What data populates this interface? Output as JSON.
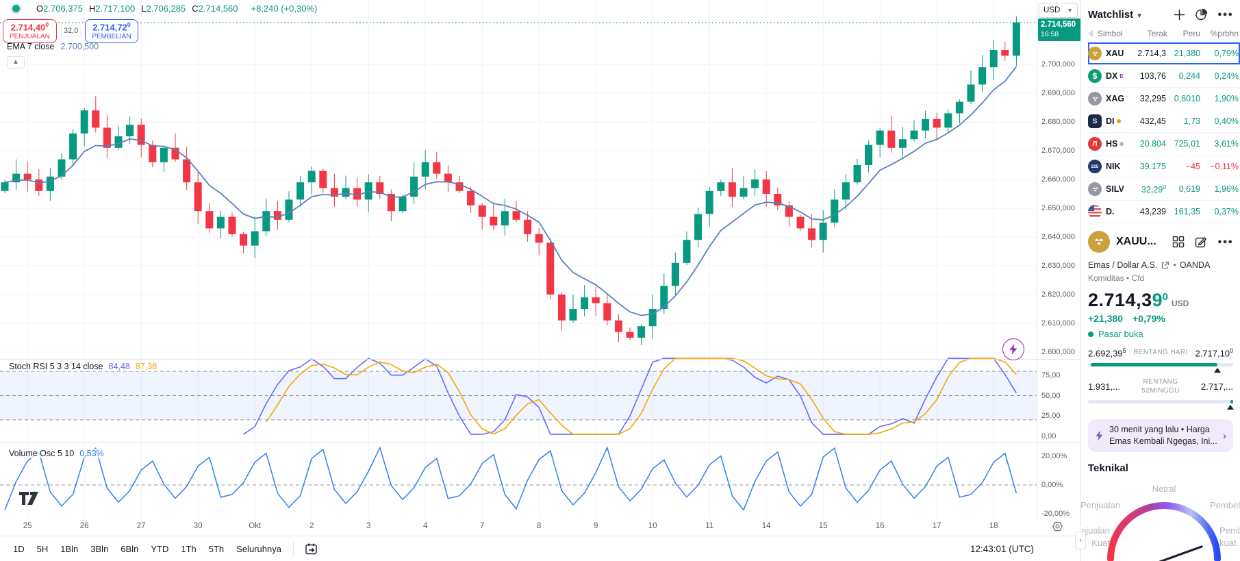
{
  "colors": {
    "up": "#089981",
    "down": "#f23645",
    "accent": "#2962ff",
    "ema": "#5b80b8",
    "stoch_k": "#646afd",
    "stoch_d": "#f7a600",
    "vol_line": "#2f7ef7",
    "grid": "#f0f3fa",
    "badge_bg": "#089981"
  },
  "chart": {
    "legend": {
      "ohlc": [
        {
          "k": "O",
          "v": "2.706,375"
        },
        {
          "k": "H",
          "v": "2.717,100"
        },
        {
          "k": "L",
          "v": "2.706,285"
        },
        {
          "k": "C",
          "v": "2.714,560"
        }
      ],
      "change": "+8,240 (+0,30%)"
    },
    "sell": {
      "price": "2.714,40",
      "sup": "0",
      "label": "PENJUALAN"
    },
    "spread": "32,0",
    "buy": {
      "price": "2.714,72",
      "sup": "0",
      "label": "PEMBELIAN"
    },
    "ema_label": "EMA 7 close",
    "ema_value": "2.700,500",
    "currency_selector": "USD",
    "price_badge": {
      "price": "2.714,560",
      "time": "16:58"
    },
    "stoch_label": "Stoch RSI 5 3 3 14 close",
    "stoch_k_value": "84,48",
    "stoch_d_value": "87,38",
    "vol_label": "Volume Osc 5 10",
    "vol_value": "0,53%",
    "price_axis_labels": [
      "2.700,000",
      "2.690,000",
      "2.680,000",
      "2.670,000",
      "2.660,000",
      "2.650,000",
      "2.640,000",
      "2.630,000",
      "2.620,000",
      "2.610,000",
      "2.600,000"
    ],
    "stoch_axis_labels": [
      "75,00",
      "50,00",
      "25,00",
      "0,00"
    ],
    "vol_axis_labels": [
      "20,00%",
      "0,00%",
      "-20,00%"
    ],
    "date_labels": [
      "25",
      "26",
      "27",
      "30",
      "Okt",
      "2",
      "3",
      "4",
      "7",
      "8",
      "9",
      "10",
      "11",
      "14",
      "15",
      "16",
      "17",
      "18"
    ],
    "timeframes": [
      "1D",
      "5H",
      "1Bln",
      "3Bln",
      "6Bln",
      "YTD",
      "1Th",
      "5Th",
      "Seluruhnya"
    ],
    "clock": "12:43:01 (UTC)"
  },
  "chart_data": {
    "type": "candlestick",
    "symbol": "XAUUSD",
    "candles_per_day": 5,
    "first_open": 2656,
    "closes": [
      2659,
      2662,
      2660,
      2656,
      2661,
      2667,
      2676,
      2684,
      2678,
      2671,
      2675,
      2679,
      2672,
      2666,
      2671,
      2667,
      2659,
      2649,
      2643,
      2647,
      2641,
      2637,
      2642,
      2649,
      2646,
      2653,
      2659,
      2663,
      2657,
      2654,
      2657,
      2653,
      2659,
      2655,
      2649,
      2654,
      2661,
      2666,
      2662,
      2659,
      2656,
      2651,
      2647,
      2644,
      2649,
      2646,
      2641,
      2638,
      2620,
      2611,
      2615,
      2619,
      2617,
      2611,
      2607,
      2605,
      2609,
      2615,
      2623,
      2631,
      2639,
      2648,
      2656,
      2659,
      2654,
      2657,
      2660,
      2655,
      2651,
      2647,
      2643,
      2639,
      2645,
      2653,
      2659,
      2665,
      2672,
      2677,
      2671,
      2674,
      2677,
      2681,
      2678,
      2683,
      2687,
      2693,
      2699,
      2705,
      2703,
      2714.56
    ],
    "last_price": 2714.56,
    "price_axis_range": [
      2600,
      2717.1
    ],
    "indicators": [
      {
        "name": "EMA",
        "params": "7 close",
        "last": 2700.5
      },
      {
        "name": "Stoch RSI",
        "params": "5 3 3 14 close",
        "k_last": 84.48,
        "d_last": 87.38,
        "bands": [
          80,
          50,
          20
        ]
      },
      {
        "name": "Volume Osc",
        "params": "5 10",
        "last_pct": 0.53,
        "axis_range_pct": [
          -20,
          20
        ]
      }
    ]
  },
  "watchlist": {
    "title": "Watchlist",
    "columns": [
      "Simbol",
      "Terak",
      "Peru",
      "%prbhn"
    ],
    "rows": [
      {
        "sym": "XAU",
        "icon": "gold",
        "last": "2.714,3",
        "last_color": "dark",
        "chg": "21,380",
        "pct": "0,79%",
        "dir": "up",
        "selected": true
      },
      {
        "sym": "DX",
        "icon": "dxy",
        "badge": "E",
        "last": "103,76",
        "last_color": "dark",
        "chg": "0,244",
        "pct": "0,24%",
        "dir": "up"
      },
      {
        "sym": "XAG",
        "icon": "silver",
        "last": "32,295",
        "last_color": "dark",
        "chg": "0,6010",
        "pct": "1,90%",
        "dir": "up"
      },
      {
        "sym": "DI",
        "icon": "sp",
        "dot": "#ff9800",
        "last": "432,45",
        "last_color": "dark",
        "chg": "1,73",
        "pct": "0,40%",
        "dir": "up"
      },
      {
        "sym": "HS",
        "icon": "hsi",
        "dot": "#b2b5be",
        "last": "20.804",
        "last_color": "up",
        "chg": "725,01",
        "pct": "3,61%",
        "dir": "up"
      },
      {
        "sym": "NIK",
        "icon": "nik",
        "last": "39.175",
        "last_color": "up",
        "chg": "−45",
        "pct": "−0,11%",
        "dir": "down"
      },
      {
        "sym": "SILV",
        "icon": "silver",
        "last": "32,29",
        "last_sup": "0",
        "last_color": "up",
        "chg": "0,619",
        "pct": "1,96%",
        "dir": "up"
      },
      {
        "sym": "D.",
        "icon": "us",
        "last": "43,239",
        "last_color": "dark",
        "chg": "161,35",
        "pct": "0,37%",
        "dir": "up"
      }
    ]
  },
  "symbol_detail": {
    "name": "XAUU...",
    "subtitle": "Emas / Dollar A.S.",
    "exchange": "OANDA",
    "type_line": "Komiditas  •  Cfd",
    "price_main": "2.714,3",
    "price_tick": "9",
    "price_sup": "0",
    "currency": "USD",
    "change_abs": "+21,380",
    "change_pct": "+0,79%",
    "market_status": "Pasar buka",
    "day_range": {
      "low": "2.692,39",
      "low_sup": "5",
      "label": "RENTANG HARI",
      "high": "2.717,10",
      "high_sup": "0",
      "fill_pct": 89
    },
    "week52_range": {
      "low": "1.931,...",
      "label1": "RENTANG",
      "label2": "52MINGGU",
      "high": "2.717,...",
      "fill_pct": 98
    },
    "news": {
      "line1": "30 menit yang lalu  •  Harga",
      "line2": "Emas Kembali Ngegas, Ini..."
    },
    "technical": {
      "title": "Teknikal",
      "gauge_labels": {
        "top": "Netral",
        "left": "Penjualan",
        "right": "Pembelian",
        "bottom_left1": "Penjualan",
        "bottom_left2": "Kuat",
        "bottom_right1": "Pembelian",
        "bottom_right2": "kuat"
      }
    }
  }
}
